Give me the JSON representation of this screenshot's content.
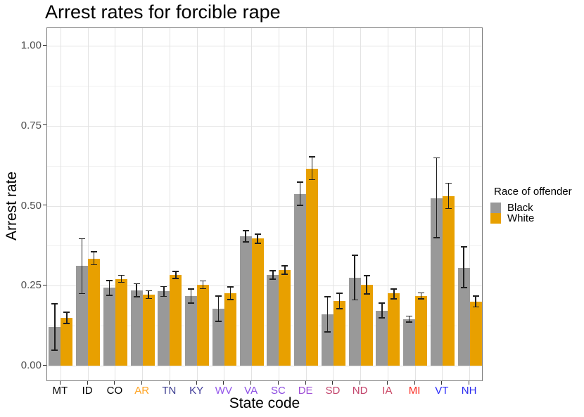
{
  "title": "Arrest rates for forcible rape",
  "axes": {
    "y_label": "Arrest rate",
    "x_label": "State code",
    "y_tick_labels": [
      "0.00",
      "0.25",
      "0.50",
      "0.75",
      "1.00"
    ]
  },
  "legend": {
    "title": "Race of offender"
  },
  "colors": {
    "black_series": "#999999",
    "white_series": "#e8a000",
    "errorbar": "#1f1f1f",
    "grid_major": "#e3e3e3",
    "grid_minor": "#f1f1f1",
    "panel_border": "#7b7b7b",
    "tick_mark": "#333333",
    "y_tick_text": "#4d4d4d"
  },
  "chart_data": {
    "type": "bar",
    "title": "Arrest rates for forcible rape",
    "xlabel": "State code",
    "ylabel": "Arrest rate",
    "ylim": [
      0,
      1.05
    ],
    "y_major_ticks": [
      0,
      0.25,
      0.5,
      0.75,
      1.0
    ],
    "y_minor_ticks": [
      0.125,
      0.375,
      0.625,
      0.875
    ],
    "grid": true,
    "legend_title": "Race of offender",
    "legend_position": "right",
    "categories": [
      "MT",
      "ID",
      "CO",
      "AR",
      "TN",
      "KY",
      "WV",
      "VA",
      "SC",
      "DE",
      "SD",
      "ND",
      "IA",
      "MI",
      "VT",
      "NH"
    ],
    "category_label_colors": [
      "#000000",
      "#000000",
      "#000000",
      "#ffa321",
      "#3b3d8f",
      "#3f3a99",
      "#9355eb",
      "#8a4be4",
      "#8c4be0",
      "#9f4ed6",
      "#c2436b",
      "#c2436b",
      "#ca4160",
      "#fb2a20",
      "#2a2afb",
      "#2b2bef"
    ],
    "series": [
      {
        "name": "Black",
        "color": "#999999",
        "values": [
          0.12,
          0.311,
          0.245,
          0.236,
          0.232,
          0.218,
          0.178,
          0.404,
          0.283,
          0.536,
          0.16,
          0.275,
          0.172,
          0.145,
          0.523,
          0.306
        ],
        "error_low": [
          0.048,
          0.225,
          0.22,
          0.215,
          0.217,
          0.196,
          0.138,
          0.387,
          0.27,
          0.501,
          0.106,
          0.205,
          0.149,
          0.136,
          0.4,
          0.244
        ],
        "error_high": [
          0.193,
          0.397,
          0.266,
          0.256,
          0.247,
          0.24,
          0.218,
          0.422,
          0.297,
          0.574,
          0.215,
          0.345,
          0.196,
          0.155,
          0.649,
          0.371
        ]
      },
      {
        "name": "White",
        "color": "#e8a000",
        "values": [
          0.15,
          0.335,
          0.271,
          0.223,
          0.284,
          0.253,
          0.227,
          0.397,
          0.299,
          0.616,
          0.202,
          0.253,
          0.226,
          0.218,
          0.53,
          0.2
        ],
        "error_low": [
          0.132,
          0.315,
          0.26,
          0.21,
          0.272,
          0.241,
          0.207,
          0.382,
          0.286,
          0.581,
          0.178,
          0.224,
          0.209,
          0.209,
          0.491,
          0.183
        ],
        "error_high": [
          0.167,
          0.356,
          0.282,
          0.234,
          0.294,
          0.265,
          0.246,
          0.411,
          0.312,
          0.653,
          0.226,
          0.281,
          0.24,
          0.227,
          0.57,
          0.218
        ]
      }
    ]
  }
}
